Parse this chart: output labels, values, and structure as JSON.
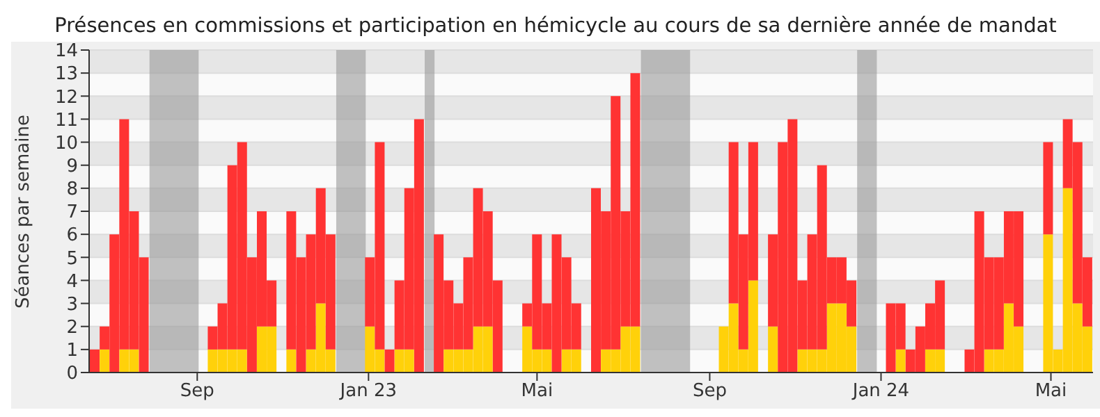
{
  "chart_data": {
    "type": "bar",
    "title": "Présences en commissions et participation en hémicycle au cours de sa dernière année de mandat",
    "ylabel": "Séances par semaine",
    "stacked": true,
    "grid": "y",
    "x": [
      "2022-06-20",
      "2022-06-27",
      "2022-07-04",
      "2022-07-11",
      "2022-07-18",
      "2022-07-25",
      "2022-08-01",
      "2022-08-08",
      "2022-08-15",
      "2022-08-22",
      "2022-08-29",
      "2022-09-05",
      "2022-09-12",
      "2022-09-19",
      "2022-09-26",
      "2022-10-03",
      "2022-10-10",
      "2022-10-17",
      "2022-10-24",
      "2022-10-31",
      "2022-11-07",
      "2022-11-14",
      "2022-11-21",
      "2022-11-28",
      "2022-12-05",
      "2022-12-12",
      "2022-12-19",
      "2022-12-26",
      "2023-01-02",
      "2023-01-09",
      "2023-01-16",
      "2023-01-23",
      "2023-01-30",
      "2023-02-06",
      "2023-02-13",
      "2023-02-20",
      "2023-02-27",
      "2023-03-06",
      "2023-03-13",
      "2023-03-20",
      "2023-03-27",
      "2023-04-03",
      "2023-04-10",
      "2023-04-17",
      "2023-04-24",
      "2023-05-01",
      "2023-05-08",
      "2023-05-15",
      "2023-05-22",
      "2023-05-29",
      "2023-06-05",
      "2023-06-12",
      "2023-06-19",
      "2023-06-26",
      "2023-07-03",
      "2023-07-10",
      "2023-07-17",
      "2023-07-24",
      "2023-07-31",
      "2023-08-07",
      "2023-08-14",
      "2023-08-21",
      "2023-08-28",
      "2023-09-04",
      "2023-09-11",
      "2023-09-18",
      "2023-09-25",
      "2023-10-02",
      "2023-10-09",
      "2023-10-16",
      "2023-10-23",
      "2023-10-30",
      "2023-11-06",
      "2023-11-13",
      "2023-11-20",
      "2023-11-27",
      "2023-12-04",
      "2023-12-11",
      "2023-12-18",
      "2023-12-25",
      "2024-01-01",
      "2024-01-08",
      "2024-01-15",
      "2024-01-22",
      "2024-01-29",
      "2024-02-05",
      "2024-02-12",
      "2024-02-19",
      "2024-02-26",
      "2024-03-04",
      "2024-03-11",
      "2024-03-18",
      "2024-03-25",
      "2024-04-01",
      "2024-04-08",
      "2024-04-15",
      "2024-04-22",
      "2024-04-29",
      "2024-05-06",
      "2024-05-13",
      "2024-05-20",
      "2024-05-27"
    ],
    "series": [
      {
        "color": "#ffd10a",
        "values": [
          0,
          1,
          0,
          1,
          1,
          0,
          0,
          0,
          0,
          0,
          0,
          0,
          1,
          1,
          1,
          1,
          0,
          2,
          2,
          0,
          1,
          0,
          1,
          3,
          1,
          0,
          0,
          0,
          2,
          1,
          0,
          1,
          1,
          0,
          0,
          0,
          1,
          1,
          1,
          2,
          2,
          0,
          0,
          0,
          2,
          1,
          1,
          0,
          1,
          1,
          0,
          0,
          1,
          1,
          2,
          2,
          0,
          0,
          0,
          0,
          0,
          0,
          0,
          0,
          2,
          3,
          1,
          4,
          0,
          2,
          0,
          0,
          1,
          1,
          1,
          3,
          3,
          2,
          0,
          0,
          0,
          0,
          1,
          0,
          0,
          1,
          1,
          0,
          0,
          0,
          0,
          1,
          1,
          3,
          2,
          0,
          0,
          6,
          1,
          8,
          3,
          2
        ]
      },
      {
        "color": "#ff3333",
        "values": [
          1,
          1,
          6,
          10,
          6,
          5,
          0,
          0,
          0,
          0,
          0,
          0,
          1,
          2,
          8,
          9,
          5,
          5,
          2,
          0,
          6,
          5,
          5,
          5,
          5,
          0,
          0,
          0,
          3,
          9,
          1,
          3,
          7,
          11,
          0,
          6,
          3,
          2,
          4,
          6,
          5,
          4,
          0,
          0,
          1,
          5,
          2,
          6,
          4,
          2,
          0,
          8,
          6,
          11,
          5,
          11,
          0,
          0,
          0,
          0,
          0,
          0,
          0,
          0,
          0,
          7,
          5,
          6,
          0,
          4,
          10,
          11,
          3,
          5,
          8,
          2,
          2,
          2,
          0,
          0,
          0,
          3,
          2,
          1,
          2,
          2,
          3,
          0,
          0,
          1,
          7,
          4,
          4,
          4,
          5,
          0,
          0,
          4,
          0,
          3,
          7,
          3
        ]
      }
    ],
    "xlim": [
      "2022-06-16",
      "2024-05-31"
    ],
    "xticks": [
      {
        "value": "2022-09-01",
        "label": "Sep"
      },
      {
        "value": "2023-01-01",
        "label": "Jan 23"
      },
      {
        "value": "2023-05-01",
        "label": "Mai"
      },
      {
        "value": "2023-09-01",
        "label": "Sep"
      },
      {
        "value": "2024-01-01",
        "label": "Jan 24"
      },
      {
        "value": "2024-05-01",
        "label": "Mai"
      }
    ],
    "ylim": [
      0,
      14
    ],
    "yticks": [
      0,
      1,
      2,
      3,
      4,
      5,
      6,
      7,
      8,
      9,
      10,
      11,
      12,
      13,
      14
    ],
    "bands": [
      {
        "axis": "x",
        "from": "2022-07-29",
        "to": "2022-09-02",
        "color": "#999999"
      },
      {
        "axis": "x",
        "from": "2022-12-09",
        "to": "2022-12-30",
        "color": "#999999"
      },
      {
        "axis": "x",
        "from": "2023-02-10",
        "to": "2023-02-17",
        "color": "#999999"
      },
      {
        "axis": "x",
        "from": "2023-07-14",
        "to": "2023-08-18",
        "color": "#999999"
      },
      {
        "axis": "x",
        "from": "2023-12-15",
        "to": "2023-12-29",
        "color": "#999999"
      }
    ]
  }
}
